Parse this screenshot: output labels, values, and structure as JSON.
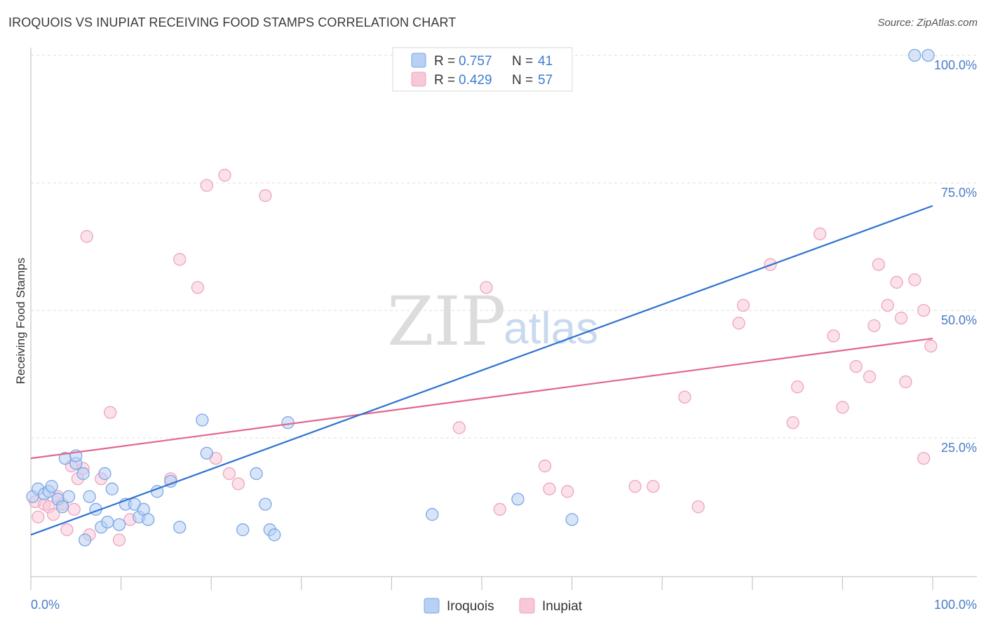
{
  "title": "IROQUOIS VS INUPIAT RECEIVING FOOD STAMPS CORRELATION CHART",
  "source": "Source: ZipAtlas.com",
  "watermark": {
    "zip": "ZIP",
    "atlas": "atlas"
  },
  "legend": {
    "r_label": "R =",
    "n_label": "N =",
    "rows": [
      {
        "r": "0.757",
        "n": "41"
      },
      {
        "r": "0.429",
        "n": "57"
      }
    ]
  },
  "chart_data": {
    "type": "scatter",
    "title": "IROQUOIS VS INUPIAT RECEIVING FOOD STAMPS CORRELATION CHART",
    "xlabel": "",
    "ylabel": "Receiving Food Stamps",
    "xlim": [
      0,
      100
    ],
    "ylim": [
      0,
      100
    ],
    "x_tick_labels": [
      "0.0%",
      "100.0%"
    ],
    "y_ticks": [
      25,
      50,
      75,
      100
    ],
    "y_tick_labels": [
      "25.0%",
      "50.0%",
      "75.0%",
      "100.0%"
    ],
    "legend_position": "top-center",
    "series": [
      {
        "name": "Iroquois",
        "color": "#7aa7e8",
        "fill": "#b8d0f3",
        "line_color": "#2f72d2",
        "r": 0.757,
        "n": 41,
        "trend": {
          "x0": 0,
          "y0": 6.0,
          "x1": 100,
          "y1": 70.5
        },
        "points": [
          [
            0.2,
            13.5
          ],
          [
            0.8,
            15.0
          ],
          [
            1.5,
            14.0
          ],
          [
            2.0,
            14.5
          ],
          [
            2.3,
            15.5
          ],
          [
            3.0,
            13.0
          ],
          [
            3.5,
            11.5
          ],
          [
            3.8,
            21.0
          ],
          [
            4.2,
            13.5
          ],
          [
            5.0,
            20.0
          ],
          [
            5.0,
            21.5
          ],
          [
            5.8,
            18.0
          ],
          [
            6.0,
            5.0
          ],
          [
            6.5,
            13.5
          ],
          [
            7.2,
            11.0
          ],
          [
            7.8,
            7.5
          ],
          [
            8.2,
            18.0
          ],
          [
            8.5,
            8.5
          ],
          [
            9.0,
            15.0
          ],
          [
            9.8,
            8.0
          ],
          [
            10.5,
            12.0
          ],
          [
            11.5,
            12.0
          ],
          [
            12.0,
            9.5
          ],
          [
            12.5,
            11.0
          ],
          [
            13.0,
            9.0
          ],
          [
            14.0,
            14.5
          ],
          [
            15.5,
            16.5
          ],
          [
            16.5,
            7.5
          ],
          [
            19.0,
            28.5
          ],
          [
            19.5,
            22.0
          ],
          [
            23.5,
            7.0
          ],
          [
            25.0,
            18.0
          ],
          [
            26.0,
            12.0
          ],
          [
            26.5,
            7.0
          ],
          [
            27.0,
            6.0
          ],
          [
            28.5,
            28.0
          ],
          [
            44.5,
            10.0
          ],
          [
            54.0,
            13.0
          ],
          [
            60.0,
            9.0
          ],
          [
            98.0,
            100.0
          ],
          [
            99.5,
            100.0
          ]
        ]
      },
      {
        "name": "Inupiat",
        "color": "#eea5bd",
        "fill": "#f7c8d7",
        "line_color": "#e2668f",
        "r": 0.429,
        "n": 57,
        "trend": {
          "x0": 0,
          "y0": 21.0,
          "x1": 100,
          "y1": 44.5
        },
        "points": [
          [
            0.5,
            12.5
          ],
          [
            0.8,
            9.5
          ],
          [
            1.5,
            12.0
          ],
          [
            2.0,
            11.5
          ],
          [
            2.5,
            10.0
          ],
          [
            3.0,
            13.5
          ],
          [
            3.5,
            12.0
          ],
          [
            4.0,
            7.0
          ],
          [
            4.5,
            19.5
          ],
          [
            4.8,
            11.0
          ],
          [
            5.2,
            17.0
          ],
          [
            5.8,
            19.0
          ],
          [
            6.2,
            64.5
          ],
          [
            6.5,
            6.0
          ],
          [
            7.8,
            17.0
          ],
          [
            8.8,
            30.0
          ],
          [
            9.8,
            5.0
          ],
          [
            11.0,
            9.0
          ],
          [
            15.5,
            17.0
          ],
          [
            16.5,
            60.0
          ],
          [
            18.5,
            54.5
          ],
          [
            19.5,
            74.5
          ],
          [
            20.5,
            21.0
          ],
          [
            21.5,
            76.5
          ],
          [
            22.0,
            18.0
          ],
          [
            23.0,
            16.0
          ],
          [
            26.0,
            72.5
          ],
          [
            47.5,
            27.0
          ],
          [
            50.5,
            54.5
          ],
          [
            52.0,
            11.0
          ],
          [
            57.0,
            19.5
          ],
          [
            57.5,
            15.0
          ],
          [
            59.5,
            14.5
          ],
          [
            67.0,
            15.5
          ],
          [
            69.0,
            15.5
          ],
          [
            72.5,
            33.0
          ],
          [
            74.0,
            11.5
          ],
          [
            78.5,
            47.5
          ],
          [
            79.0,
            51.0
          ],
          [
            82.0,
            59.0
          ],
          [
            84.5,
            28.0
          ],
          [
            85.0,
            35.0
          ],
          [
            87.5,
            65.0
          ],
          [
            89.0,
            45.0
          ],
          [
            90.0,
            31.0
          ],
          [
            91.5,
            39.0
          ],
          [
            93.0,
            37.0
          ],
          [
            93.5,
            47.0
          ],
          [
            94.0,
            59.0
          ],
          [
            95.0,
            51.0
          ],
          [
            96.0,
            55.5
          ],
          [
            96.5,
            48.5
          ],
          [
            97.0,
            36.0
          ],
          [
            98.0,
            56.0
          ],
          [
            99.0,
            21.0
          ],
          [
            99.0,
            50.0
          ],
          [
            99.8,
            43.0
          ]
        ]
      }
    ]
  },
  "bottom_legend": [
    "Iroquois",
    "Inupiat"
  ]
}
